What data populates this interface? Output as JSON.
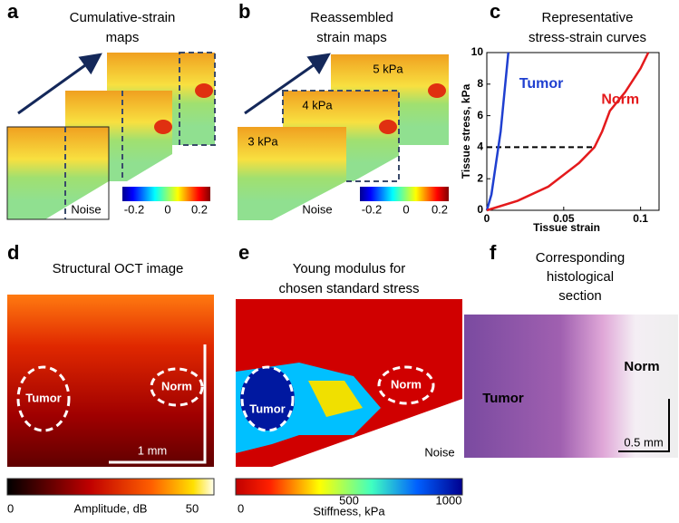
{
  "panels": {
    "a": {
      "letter": "a",
      "title": [
        "Cumulative-strain",
        "maps"
      ],
      "noise": "Noise",
      "colorbar_ticks": [
        -0.2,
        0,
        0.2
      ]
    },
    "b": {
      "letter": "b",
      "title": [
        "Reassembled",
        "strain maps"
      ],
      "map_labels": [
        "5 kPa",
        "4 kPa",
        "3 kPa"
      ],
      "noise": "Noise",
      "colorbar_ticks": [
        -0.2,
        0,
        0.2
      ]
    },
    "c": {
      "letter": "c",
      "title": [
        "Representative",
        "stress-strain curves"
      ]
    },
    "d": {
      "letter": "d",
      "title": [
        "Structural OCT image"
      ],
      "labels": [
        "Tumor",
        "Norm"
      ],
      "scale": "1 mm",
      "colorbar_ticks": [
        0,
        50
      ],
      "colorbar_label": "Amplitude, dB"
    },
    "e": {
      "letter": "e",
      "title": [
        "Young modulus for",
        "chosen standard stress"
      ],
      "labels": [
        "Tumor",
        "Norm"
      ],
      "noise": "Noise",
      "colorbar_ticks": [
        0,
        500,
        1000
      ],
      "colorbar_label": "Stiffness, kPa"
    },
    "f": {
      "letter": "f",
      "title": [
        "Corresponding",
        "histological",
        "section"
      ],
      "labels": [
        "Tumor",
        "Norm"
      ],
      "scale": "0.5 mm"
    }
  },
  "chart_data": {
    "type": "line",
    "xlabel": "Tissue strain",
    "ylabel": "Tissue stress, kPa",
    "xlim": [
      0,
      0.112
    ],
    "ylim": [
      0,
      10
    ],
    "xticks": [
      0,
      0.05,
      0.1
    ],
    "yticks": [
      0,
      2,
      4,
      6,
      8,
      10
    ],
    "reference_stress": 4,
    "series": [
      {
        "name": "Tumor",
        "color": "#1f3fd0",
        "x": [
          0,
          0.003,
          0.006,
          0.009,
          0.012,
          0.014
        ],
        "values": [
          0,
          1,
          3,
          5,
          8,
          10
        ]
      },
      {
        "name": "Norm",
        "color": "#e41a1c",
        "x": [
          0,
          0.02,
          0.04,
          0.06,
          0.07,
          0.075,
          0.08,
          0.09,
          0.1,
          0.105
        ],
        "values": [
          0,
          0.6,
          1.5,
          3,
          4,
          5,
          6.3,
          7.5,
          9,
          10
        ]
      }
    ]
  }
}
